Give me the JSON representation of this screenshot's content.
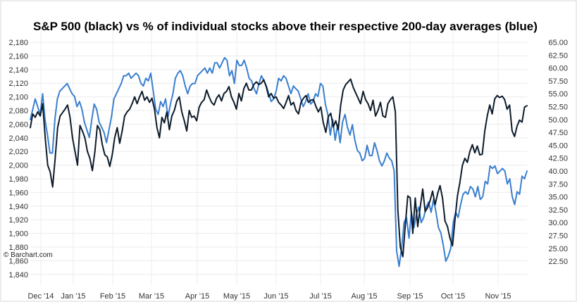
{
  "title": "S&P 500 (black) vs % of individual stocks above their respective 200-day averages (blue)",
  "watermark": "© Barchart.com",
  "chart_data": {
    "type": "line",
    "title": "S&P 500 (black) vs % of individual stocks above their respective 200-day averages (blue)",
    "grid": true,
    "x_tick_labels": [
      "Dec '14",
      "Jan '15",
      "Feb '15",
      "Mar '15",
      "Apr '15",
      "May '15",
      "Jun '15",
      "Jul '15",
      "Aug '15",
      "Sep '15",
      "Oct '15",
      "Nov '15"
    ],
    "left_axis": {
      "ticks": [
        "2,180",
        "2,160",
        "2,140",
        "2,120",
        "2,100",
        "2,080",
        "2,060",
        "2,040",
        "2,020",
        "2,000",
        "1,980",
        "1,960",
        "1,940",
        "1,920",
        "1,900",
        "1,880",
        "1,860",
        "1,840"
      ],
      "range": [
        1830,
        2190
      ]
    },
    "right_axis": {
      "ticks": [
        "65.00",
        "62.50",
        "60.00",
        "57.50",
        "55.00",
        "52.50",
        "50.00",
        "47.50",
        "45.00",
        "42.50",
        "40.00",
        "37.50",
        "35.00",
        "32.50",
        "30.00",
        "27.50",
        "25.00",
        "22.50"
      ],
      "range": [
        20,
        67
      ]
    },
    "series": [
      {
        "name": "S&P 500",
        "color": "#0d1b2a",
        "axis": "left",
        "values": [
          2055,
          2075,
          2070,
          2078,
          2072,
          2090,
          2040,
          2000,
          1990,
          1968,
          2010,
          2055,
          2072,
          2077,
          2082,
          2088,
          2070,
          2040,
          2020,
          2000,
          2058,
          2050,
          2040,
          2020,
          2010,
          1992,
          2020,
          2058,
          2052,
          2030,
          2015,
          2012,
          1998,
          2015,
          2040,
          2055,
          2032,
          2050,
          2072,
          2078,
          2082,
          2090,
          2100,
          2090,
          2100,
          2108,
          2095,
          2100,
          2092,
          2098,
          2082,
          2055,
          2040,
          2070,
          2062,
          2078,
          2052,
          2072,
          2080,
          2094,
          2100,
          2078,
          2065,
          2050,
          2080,
          2070,
          2072,
          2065,
          2085,
          2092,
          2096,
          2110,
          2100,
          2092,
          2088,
          2098,
          2103,
          2094,
          2105,
          2108,
          2115,
          2100,
          2092,
          2082,
          2105,
          2094,
          2112,
          2120,
          2110,
          2110,
          2118,
          2122,
          2118,
          2120,
          2125,
          2115,
          2100,
          2105,
          2098,
          2100,
          2092,
          2088,
          2083,
          2092,
          2102,
          2088,
          2092,
          2080,
          2075,
          2092,
          2098,
          2102,
          2092,
          2095,
          2096,
          2086,
          2078,
          2085,
          2062,
          2048,
          2071,
          2076,
          2056,
          2065,
          2052,
          2088,
          2110,
          2118,
          2122,
          2126,
          2114,
          2106,
          2098,
          2090,
          2108,
          2096,
          2090,
          2080,
          2095,
          2072,
          2080,
          2092,
          2072,
          2070,
          2090,
          2096,
          2100,
          2078,
          1935,
          1880,
          1866,
          1912,
          1955,
          1952,
          1900,
          1952,
          1910,
          1938,
          1965,
          1932,
          1938,
          1948,
          1962,
          1942,
          1958,
          1970,
          1952,
          1918,
          1910,
          1893,
          1882,
          1920,
          1955,
          1975,
          2000,
          2010,
          2004,
          2020,
          2030,
          2018,
          2028,
          2015,
          2016,
          2050,
          2072,
          2088,
          2075,
          2097,
          2102,
          2099,
          2101,
          2096,
          2082,
          2088,
          2050,
          2042,
          2057,
          2066,
          2063,
          2085,
          2087
        ]
      },
      {
        "name": "% of stocks above 200-day average",
        "color": "#3a7fcf",
        "axis": "right",
        "values": [
          50,
          52,
          54,
          52.5,
          51,
          55,
          50,
          47,
          43.5,
          43.5,
          50,
          54,
          55.5,
          56,
          56.5,
          57,
          56,
          55,
          54.5,
          52.5,
          53.5,
          52,
          49.5,
          48,
          46.5,
          50,
          53,
          52,
          49.5,
          48.5,
          47.5,
          45.5,
          48,
          50.5,
          54,
          55,
          56,
          57,
          58.5,
          58.5,
          59,
          58,
          58.5,
          59,
          58.5,
          57,
          56.5,
          58,
          57.5,
          59,
          55.5,
          52,
          51,
          53.5,
          52.5,
          54,
          50.5,
          53,
          55,
          58,
          59,
          59.5,
          58.5,
          56.5,
          55,
          56.5,
          57,
          57,
          58.5,
          59,
          59.5,
          60,
          59,
          60,
          59,
          61,
          61,
          60,
          61,
          62,
          61.5,
          58.5,
          59.5,
          57,
          61.5,
          60.5,
          60.5,
          61.5,
          60,
          58,
          57.5,
          56,
          55,
          57,
          58.5,
          57.5,
          56.5,
          55,
          53.5,
          54,
          55.5,
          58,
          57.5,
          58.5,
          58,
          56.5,
          55,
          56.5,
          56,
          55.5,
          54,
          52.5,
          53.5,
          55,
          53,
          53.5,
          55,
          54.5,
          57,
          56.5,
          53,
          51,
          47,
          50,
          46,
          49,
          45.5,
          49.5,
          51,
          48.5,
          47,
          49,
          46,
          44,
          43.5,
          42,
          42.5,
          45,
          43,
          43,
          45.5,
          44,
          42,
          41,
          42,
          43.5,
          42.5,
          42,
          40,
          24.5,
          21.5,
          25,
          30,
          31,
          27,
          32,
          29,
          31.5,
          33,
          30,
          31,
          33,
          34,
          32,
          34.5,
          32,
          29,
          28,
          25.5,
          22.5,
          23.5,
          25,
          30,
          32,
          31,
          33.5,
          35.5,
          36,
          35.5,
          37,
          36.5,
          35,
          37,
          34.5,
          35,
          38,
          37.5,
          41,
          40.5,
          41,
          39.5,
          40,
          40.5,
          40,
          37.5,
          38.5,
          35,
          33.5,
          36,
          35.5,
          39,
          38.5,
          40
        ]
      }
    ]
  }
}
